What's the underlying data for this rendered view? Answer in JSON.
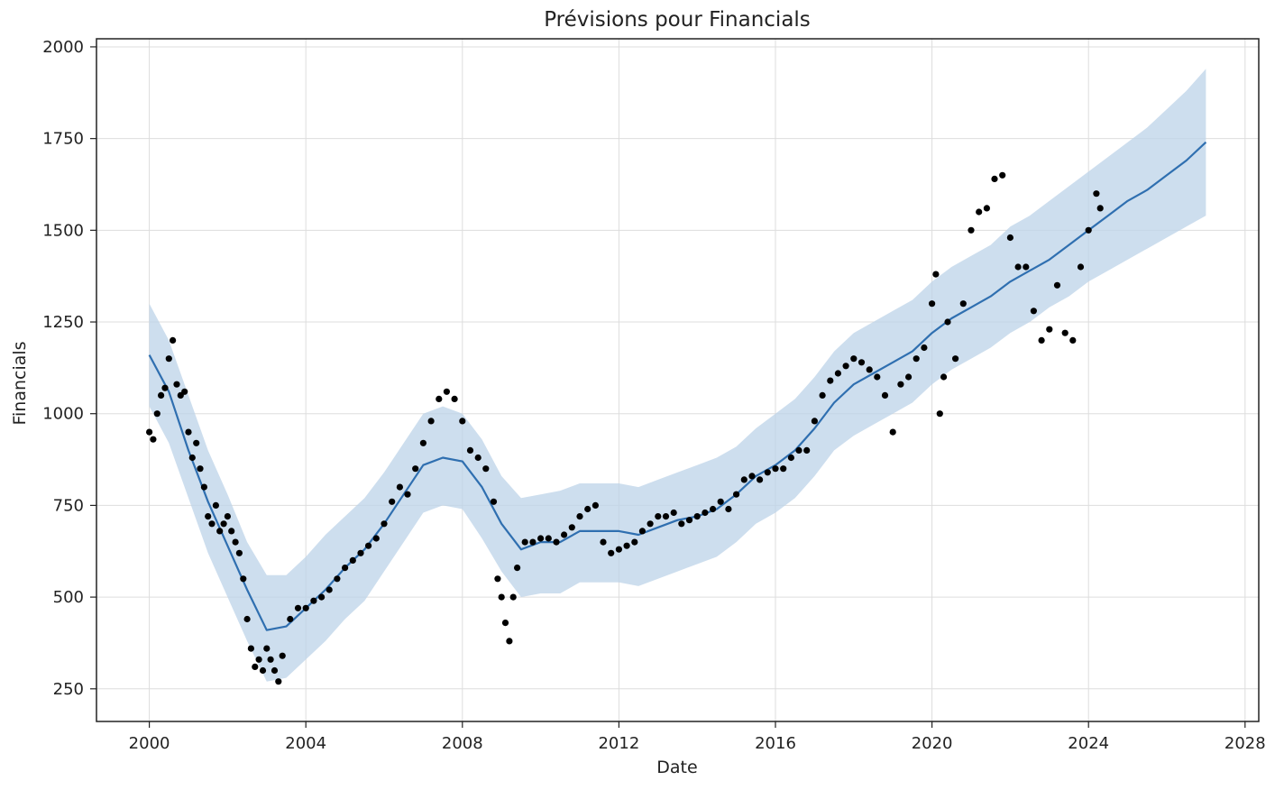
{
  "chart_data": {
    "type": "line",
    "title": "Prévisions pour Financials",
    "xlabel": "Date",
    "ylabel": "Financials",
    "xlim": [
      1998.65,
      2028.35
    ],
    "ylim": [
      161,
      2022
    ],
    "x_ticks": [
      2000,
      2004,
      2008,
      2012,
      2016,
      2020,
      2024,
      2028
    ],
    "y_ticks": [
      250,
      500,
      750,
      1000,
      1250,
      1500,
      1750,
      2000
    ],
    "grid": true,
    "colors": {
      "forecast_line": "#2f6fb0",
      "interval_fill": "#bcd3e8",
      "points": "#000000",
      "grid": "#dddddd",
      "frame": "#222222"
    },
    "series": [
      {
        "kind": "observed-points",
        "x": [
          2000.0,
          2000.1,
          2000.2,
          2000.3,
          2000.4,
          2000.5,
          2000.6,
          2000.7,
          2000.8,
          2000.9,
          2001.0,
          2001.1,
          2001.2,
          2001.3,
          2001.4,
          2001.5,
          2001.6,
          2001.7,
          2001.8,
          2001.9,
          2002.0,
          2002.1,
          2002.2,
          2002.3,
          2002.4,
          2002.5,
          2002.6,
          2002.7,
          2002.8,
          2002.9,
          2003.0,
          2003.1,
          2003.2,
          2003.3,
          2003.4,
          2003.6,
          2003.8,
          2004.0,
          2004.2,
          2004.4,
          2004.6,
          2004.8,
          2005.0,
          2005.2,
          2005.4,
          2005.6,
          2005.8,
          2006.0,
          2006.2,
          2006.4,
          2006.6,
          2006.8,
          2007.0,
          2007.2,
          2007.4,
          2007.6,
          2007.8,
          2008.0,
          2008.2,
          2008.4,
          2008.6,
          2008.8,
          2008.9,
          2009.0,
          2009.1,
          2009.2,
          2009.3,
          2009.4,
          2009.6,
          2009.8,
          2010.0,
          2010.2,
          2010.4,
          2010.6,
          2010.8,
          2011.0,
          2011.2,
          2011.4,
          2011.6,
          2011.8,
          2012.0,
          2012.2,
          2012.4,
          2012.6,
          2012.8,
          2013.0,
          2013.2,
          2013.4,
          2013.6,
          2013.8,
          2014.0,
          2014.2,
          2014.4,
          2014.6,
          2014.8,
          2015.0,
          2015.2,
          2015.4,
          2015.6,
          2015.8,
          2016.0,
          2016.2,
          2016.4,
          2016.6,
          2016.8,
          2017.0,
          2017.2,
          2017.4,
          2017.6,
          2017.8,
          2018.0,
          2018.2,
          2018.4,
          2018.6,
          2018.8,
          2019.0,
          2019.2,
          2019.4,
          2019.6,
          2019.8,
          2020.0,
          2020.1,
          2020.2,
          2020.3,
          2020.4,
          2020.6,
          2020.8,
          2021.0,
          2021.2,
          2021.4,
          2021.6,
          2021.8,
          2022.0,
          2022.2,
          2022.4,
          2022.6,
          2022.8,
          2023.0,
          2023.2,
          2023.4,
          2023.6,
          2023.8,
          2024.0,
          2024.2,
          2024.3
        ],
        "y": [
          950,
          930,
          1000,
          1050,
          1070,
          1150,
          1200,
          1080,
          1050,
          1060,
          950,
          880,
          920,
          850,
          800,
          720,
          700,
          750,
          680,
          700,
          720,
          680,
          650,
          620,
          550,
          440,
          360,
          310,
          330,
          300,
          360,
          330,
          300,
          270,
          340,
          440,
          470,
          470,
          490,
          500,
          520,
          550,
          580,
          600,
          620,
          640,
          660,
          700,
          760,
          800,
          780,
          850,
          920,
          980,
          1040,
          1060,
          1040,
          980,
          900,
          880,
          850,
          760,
          550,
          500,
          430,
          380,
          500,
          580,
          650,
          650,
          660,
          660,
          650,
          670,
          690,
          720,
          740,
          750,
          650,
          620,
          630,
          640,
          650,
          680,
          700,
          720,
          720,
          730,
          700,
          710,
          720,
          730,
          740,
          760,
          740,
          780,
          820,
          830,
          820,
          840,
          850,
          850,
          880,
          900,
          900,
          980,
          1050,
          1090,
          1110,
          1130,
          1150,
          1140,
          1120,
          1100,
          1050,
          950,
          1080,
          1100,
          1150,
          1180,
          1300,
          1380,
          1000,
          1100,
          1250,
          1150,
          1300,
          1500,
          1550,
          1560,
          1640,
          1650,
          1480,
          1400,
          1400,
          1280,
          1200,
          1230,
          1350,
          1220,
          1200,
          1400,
          1500,
          1600,
          1560
        ]
      },
      {
        "kind": "forecast-line",
        "x": [
          2000.0,
          2000.5,
          2001.0,
          2001.5,
          2002.0,
          2002.5,
          2003.0,
          2003.5,
          2004.0,
          2004.5,
          2005.0,
          2005.5,
          2006.0,
          2006.5,
          2007.0,
          2007.5,
          2008.0,
          2008.5,
          2009.0,
          2009.5,
          2010.0,
          2010.5,
          2011.0,
          2011.5,
          2012.0,
          2012.5,
          2013.0,
          2013.5,
          2014.0,
          2014.5,
          2015.0,
          2015.5,
          2016.0,
          2016.5,
          2017.0,
          2017.5,
          2018.0,
          2018.5,
          2019.0,
          2019.5,
          2020.0,
          2020.5,
          2021.0,
          2021.5,
          2022.0,
          2022.5,
          2023.0,
          2023.5,
          2024.0,
          2024.5,
          2025.0,
          2025.5,
          2026.0,
          2026.5,
          2027.0
        ],
        "y": [
          1160,
          1060,
          900,
          760,
          640,
          520,
          410,
          420,
          470,
          520,
          580,
          630,
          700,
          780,
          860,
          880,
          870,
          800,
          700,
          630,
          650,
          650,
          680,
          680,
          680,
          670,
          690,
          710,
          720,
          740,
          780,
          830,
          860,
          900,
          960,
          1030,
          1080,
          1110,
          1140,
          1170,
          1220,
          1260,
          1290,
          1320,
          1360,
          1390,
          1420,
          1460,
          1500,
          1540,
          1580,
          1610,
          1650,
          1690,
          1740
        ]
      },
      {
        "kind": "uncertainty-interval",
        "x": [
          2000.0,
          2000.5,
          2001.0,
          2001.5,
          2002.0,
          2002.5,
          2003.0,
          2003.5,
          2004.0,
          2004.5,
          2005.0,
          2005.5,
          2006.0,
          2006.5,
          2007.0,
          2007.5,
          2008.0,
          2008.5,
          2009.0,
          2009.5,
          2010.0,
          2010.5,
          2011.0,
          2011.5,
          2012.0,
          2012.5,
          2013.0,
          2013.5,
          2014.0,
          2014.5,
          2015.0,
          2015.5,
          2016.0,
          2016.5,
          2017.0,
          2017.5,
          2018.0,
          2018.5,
          2019.0,
          2019.5,
          2020.0,
          2020.5,
          2021.0,
          2021.5,
          2022.0,
          2022.5,
          2023.0,
          2023.5,
          2024.0,
          2024.5,
          2025.0,
          2025.5,
          2026.0,
          2026.5,
          2027.0
        ],
        "upper": [
          1300,
          1200,
          1050,
          900,
          780,
          650,
          560,
          560,
          610,
          670,
          720,
          770,
          840,
          920,
          1000,
          1020,
          1000,
          930,
          830,
          770,
          780,
          790,
          810,
          810,
          810,
          800,
          820,
          840,
          860,
          880,
          910,
          960,
          1000,
          1040,
          1100,
          1170,
          1220,
          1250,
          1280,
          1310,
          1360,
          1400,
          1430,
          1460,
          1510,
          1540,
          1580,
          1620,
          1660,
          1700,
          1740,
          1780,
          1830,
          1880,
          1940
        ],
        "lower": [
          1020,
          920,
          770,
          620,
          500,
          380,
          270,
          280,
          330,
          380,
          440,
          490,
          570,
          650,
          730,
          750,
          740,
          660,
          570,
          500,
          510,
          510,
          540,
          540,
          540,
          530,
          550,
          570,
          590,
          610,
          650,
          700,
          730,
          770,
          830,
          900,
          940,
          970,
          1000,
          1030,
          1080,
          1120,
          1150,
          1180,
          1220,
          1250,
          1290,
          1320,
          1360,
          1390,
          1420,
          1450,
          1480,
          1510,
          1540
        ]
      }
    ]
  }
}
